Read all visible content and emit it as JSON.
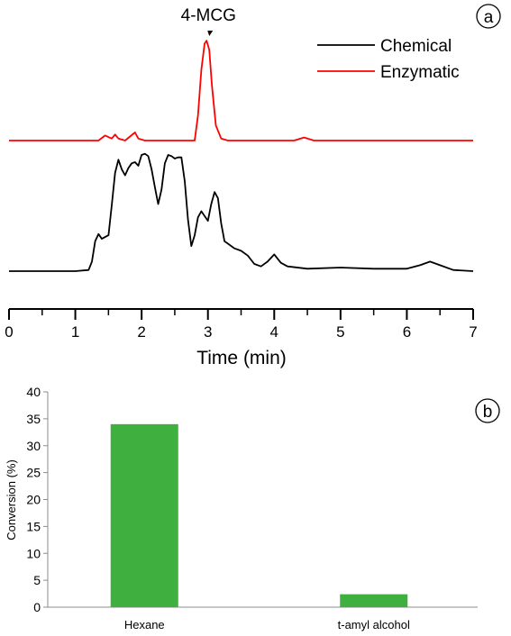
{
  "chart_data": [
    {
      "panel_label": "a",
      "type": "line",
      "xlabel": "Time (min)",
      "xlim": [
        0,
        7
      ],
      "x_ticks": [
        "0",
        "1",
        "2",
        "3",
        "4",
        "5",
        "6",
        "7"
      ],
      "y_axis_shown": false,
      "legend_placement": "top-right",
      "annotation": {
        "text": "4-MCG",
        "x": 2.98
      },
      "series": [
        {
          "name": "Chemical",
          "color": "#000000",
          "x": [
            0.0,
            0.5,
            1.0,
            1.2,
            1.25,
            1.3,
            1.35,
            1.4,
            1.5,
            1.55,
            1.6,
            1.65,
            1.7,
            1.75,
            1.8,
            1.85,
            1.9,
            1.95,
            2.0,
            2.05,
            2.1,
            2.15,
            2.2,
            2.25,
            2.3,
            2.35,
            2.4,
            2.45,
            2.5,
            2.55,
            2.6,
            2.65,
            2.7,
            2.75,
            2.8,
            2.85,
            2.9,
            2.95,
            3.0,
            3.05,
            3.1,
            3.15,
            3.2,
            3.25,
            3.3,
            3.35,
            3.4,
            3.5,
            3.6,
            3.7,
            3.8,
            3.9,
            4.0,
            4.1,
            4.2,
            4.5,
            5.0,
            5.5,
            6.0,
            6.2,
            6.35,
            6.5,
            6.7,
            7.0
          ],
          "y": [
            0.0,
            0.0,
            0.0,
            0.01,
            0.08,
            0.25,
            0.31,
            0.27,
            0.3,
            0.55,
            0.82,
            0.93,
            0.85,
            0.8,
            0.86,
            0.9,
            0.91,
            0.88,
            0.97,
            0.98,
            0.96,
            0.85,
            0.7,
            0.56,
            0.68,
            0.9,
            0.97,
            0.96,
            0.94,
            0.95,
            0.95,
            0.75,
            0.43,
            0.21,
            0.3,
            0.45,
            0.5,
            0.46,
            0.42,
            0.56,
            0.66,
            0.61,
            0.4,
            0.25,
            0.23,
            0.21,
            0.19,
            0.17,
            0.13,
            0.06,
            0.04,
            0.08,
            0.14,
            0.07,
            0.04,
            0.02,
            0.03,
            0.02,
            0.02,
            0.05,
            0.08,
            0.05,
            0.01,
            0.0
          ]
        },
        {
          "name": "Enzymatic",
          "color": "#ff0000",
          "x": [
            0.0,
            1.0,
            1.35,
            1.45,
            1.55,
            1.6,
            1.65,
            1.75,
            1.9,
            1.95,
            2.05,
            2.5,
            2.8,
            2.85,
            2.9,
            2.95,
            2.98,
            3.02,
            3.06,
            3.12,
            3.2,
            3.3,
            3.5,
            4.0,
            4.3,
            4.45,
            4.6,
            5.0,
            6.0,
            7.0
          ],
          "y": [
            0.0,
            0.0,
            0.0,
            0.05,
            0.02,
            0.06,
            0.02,
            0.0,
            0.08,
            0.02,
            0.0,
            0.0,
            0.0,
            0.25,
            0.7,
            0.96,
            0.99,
            0.9,
            0.55,
            0.15,
            0.02,
            0.0,
            0.0,
            0.0,
            0.0,
            0.03,
            0.0,
            0.0,
            0.0,
            0.0
          ]
        }
      ]
    },
    {
      "panel_label": "b",
      "type": "bar",
      "categories": [
        "Hexane",
        "t-amyl alcohol"
      ],
      "values": [
        34,
        2.4
      ],
      "ylabel": "Conversion (%)",
      "xlabel": "",
      "ylim": [
        0,
        40
      ],
      "y_ticks": [
        "0",
        "5",
        "10",
        "15",
        "20",
        "25",
        "30",
        "35",
        "40"
      ],
      "bar_color": "#3faf3f",
      "grid": false
    }
  ]
}
